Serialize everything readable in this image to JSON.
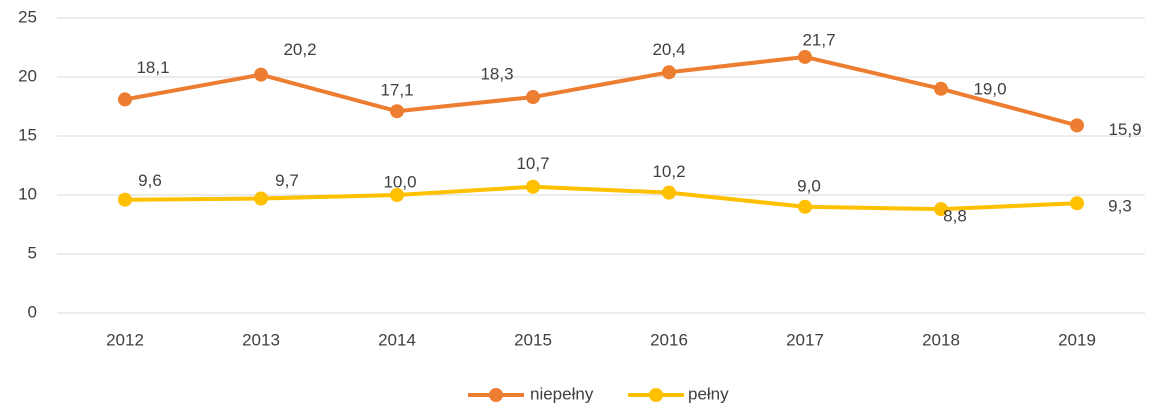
{
  "chart_data": {
    "type": "line",
    "categories": [
      "2012",
      "2013",
      "2014",
      "2015",
      "2016",
      "2017",
      "2018",
      "2019"
    ],
    "series": [
      {
        "name": "niepełny",
        "color": "#ed7d31",
        "values": [
          18.1,
          20.2,
          17.1,
          18.3,
          20.4,
          21.7,
          19.0,
          15.9
        ],
        "value_labels": [
          "18,1",
          "20,2",
          "17,1",
          "18,3",
          "20,4",
          "21,7",
          "19,0",
          "15,9"
        ]
      },
      {
        "name": "pełny",
        "color": "#ffc000",
        "values": [
          9.6,
          9.7,
          10.0,
          10.7,
          10.2,
          9.0,
          8.8,
          9.3
        ],
        "value_labels": [
          "9,6",
          "9,7",
          "10,0",
          "10,7",
          "10,2",
          "9,0",
          "8,8",
          "9,3"
        ]
      }
    ],
    "ylim": [
      0,
      25
    ],
    "yticks": [
      0,
      5,
      10,
      15,
      20,
      25
    ],
    "grid": true,
    "legend": "bottom"
  }
}
